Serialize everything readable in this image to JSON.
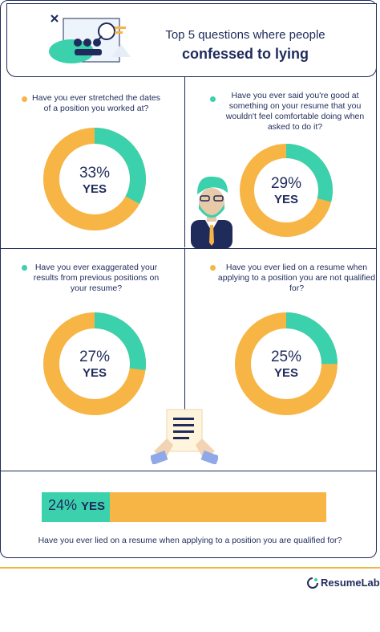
{
  "header": {
    "title_line1": "Top 5 questions where people",
    "title_line2": "confessed to lying"
  },
  "colors": {
    "teal": "#3bd1ad",
    "orange": "#f7b545",
    "navy": "#1f2b5b"
  },
  "chart_data": [
    {
      "type": "pie",
      "question": "Have you ever stretched the dates of a position you worked at?",
      "values": [
        33,
        67
      ],
      "label": "33%",
      "yes": "YES"
    },
    {
      "type": "pie",
      "question": "Have you ever said you're good at something on your resume that you wouldn't feel comfortable doing when asked to do it?",
      "values": [
        29,
        71
      ],
      "label": "29%",
      "yes": "YES"
    },
    {
      "type": "pie",
      "question": "Have you ever exaggerated your results from previous positions on your resume?",
      "values": [
        27,
        73
      ],
      "label": "27%",
      "yes": "YES"
    },
    {
      "type": "pie",
      "question": "Have you ever lied on a resume when applying to a position you are not qualified for?",
      "values": [
        25,
        75
      ],
      "label": "25%",
      "yes": "YES"
    },
    {
      "type": "bar",
      "question": "Have you ever lied on a resume when applying to a position you are qualified for?",
      "values": [
        24
      ],
      "label": "24%",
      "yes": "YES",
      "ylim": [
        0,
        100
      ]
    }
  ],
  "brand": {
    "name": "ResumeLab"
  }
}
